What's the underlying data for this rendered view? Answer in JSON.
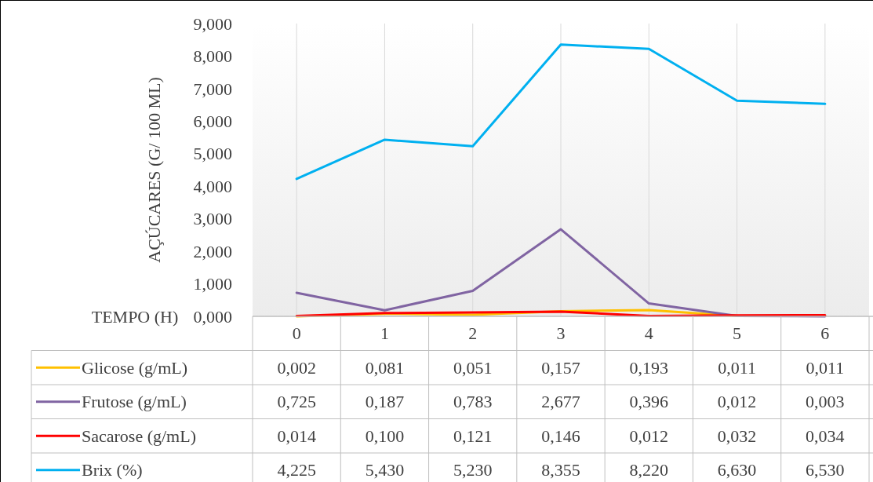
{
  "chart_data": {
    "type": "line",
    "ylabel": "AÇÚCARES (G/ 100 ML)",
    "xlabel": "TEMPO (H)",
    "categories": [
      "0",
      "1",
      "2",
      "3",
      "4",
      "5",
      "6"
    ],
    "series": [
      {
        "name": "Glicose (g/mL)",
        "color": "#ffc000",
        "values": [
          0.002,
          0.081,
          0.051,
          0.157,
          0.193,
          0.011,
          0.011
        ],
        "value_labels": [
          "0,002",
          "0,081",
          "0,051",
          "0,157",
          "0,193",
          "0,011",
          "0,011"
        ]
      },
      {
        "name": "Frutose (g/mL)",
        "color": "#8064a2",
        "values": [
          0.725,
          0.187,
          0.783,
          2.677,
          0.396,
          0.012,
          0.003
        ],
        "value_labels": [
          "0,725",
          "0,187",
          "0,783",
          "2,677",
          "0,396",
          "0,012",
          "0,003"
        ]
      },
      {
        "name": "Sacarose (g/mL)",
        "color": "#ff0000",
        "values": [
          0.014,
          0.1,
          0.121,
          0.146,
          0.012,
          0.032,
          0.034
        ],
        "value_labels": [
          "0,014",
          "0,100",
          "0,121",
          "0,146",
          "0,012",
          "0,032",
          "0,034"
        ]
      },
      {
        "name": "Brix (%)",
        "color": "#00b0f0",
        "values": [
          4.225,
          5.43,
          5.23,
          8.355,
          8.22,
          6.63,
          6.53
        ],
        "value_labels": [
          "4,225",
          "5,430",
          "5,230",
          "8,355",
          "8,220",
          "6,630",
          "6,530"
        ]
      }
    ],
    "ylim": [
      0,
      9
    ],
    "yticks": [
      {
        "value": 0,
        "label": "0,000"
      },
      {
        "value": 1,
        "label": "1,000"
      },
      {
        "value": 2,
        "label": "2,000"
      },
      {
        "value": 3,
        "label": "3,000"
      },
      {
        "value": 4,
        "label": "4,000"
      },
      {
        "value": 5,
        "label": "5,000"
      },
      {
        "value": 6,
        "label": "6,000"
      },
      {
        "value": 7,
        "label": "7,000"
      },
      {
        "value": 8,
        "label": "8,000"
      },
      {
        "value": 9,
        "label": "9,000"
      }
    ],
    "grid": "x",
    "legend": "bottom",
    "marker": "none",
    "line_style": "solid"
  }
}
